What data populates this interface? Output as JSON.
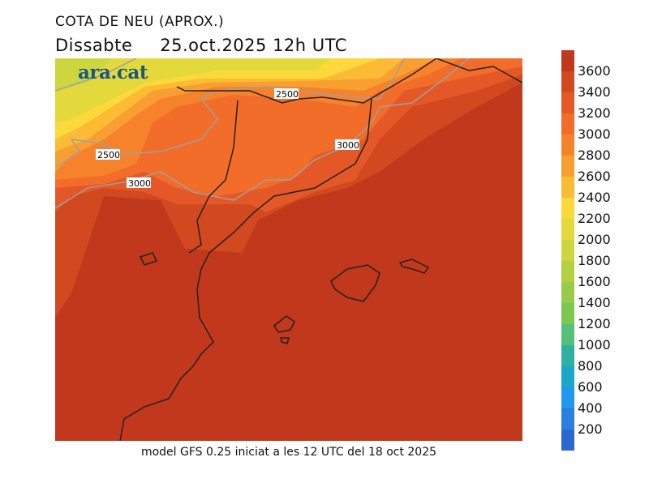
{
  "title": "COTA DE NEU (APROX.)",
  "day": "Dissabte",
  "datetime": "25.oct.2025 12h UTC",
  "logo": "ara.cat",
  "footer": "model GFS 0.25 iniciat a les 12 UTC del 18 oct 2025",
  "contour_labels": [
    "2500",
    "2500",
    "3000",
    "3000"
  ],
  "colorbar": {
    "ticks": [
      "3600",
      "3400",
      "3200",
      "3000",
      "2800",
      "2600",
      "2400",
      "2200",
      "2000",
      "1800",
      "1600",
      "1400",
      "1200",
      "1000",
      "800",
      "600",
      "400",
      "200"
    ],
    "colors": [
      "#c1381c",
      "#d2481f",
      "#e45827",
      "#f26c2a",
      "#f7822c",
      "#f99e31",
      "#fbbb34",
      "#fbd93a",
      "#e3d83c",
      "#ccd63e",
      "#b3d041",
      "#98cb48",
      "#7cc74d",
      "#55c07a",
      "#30b0a0",
      "#1aa7c9",
      "#2296f3",
      "#2980e0",
      "#2c67d0"
    ]
  }
}
